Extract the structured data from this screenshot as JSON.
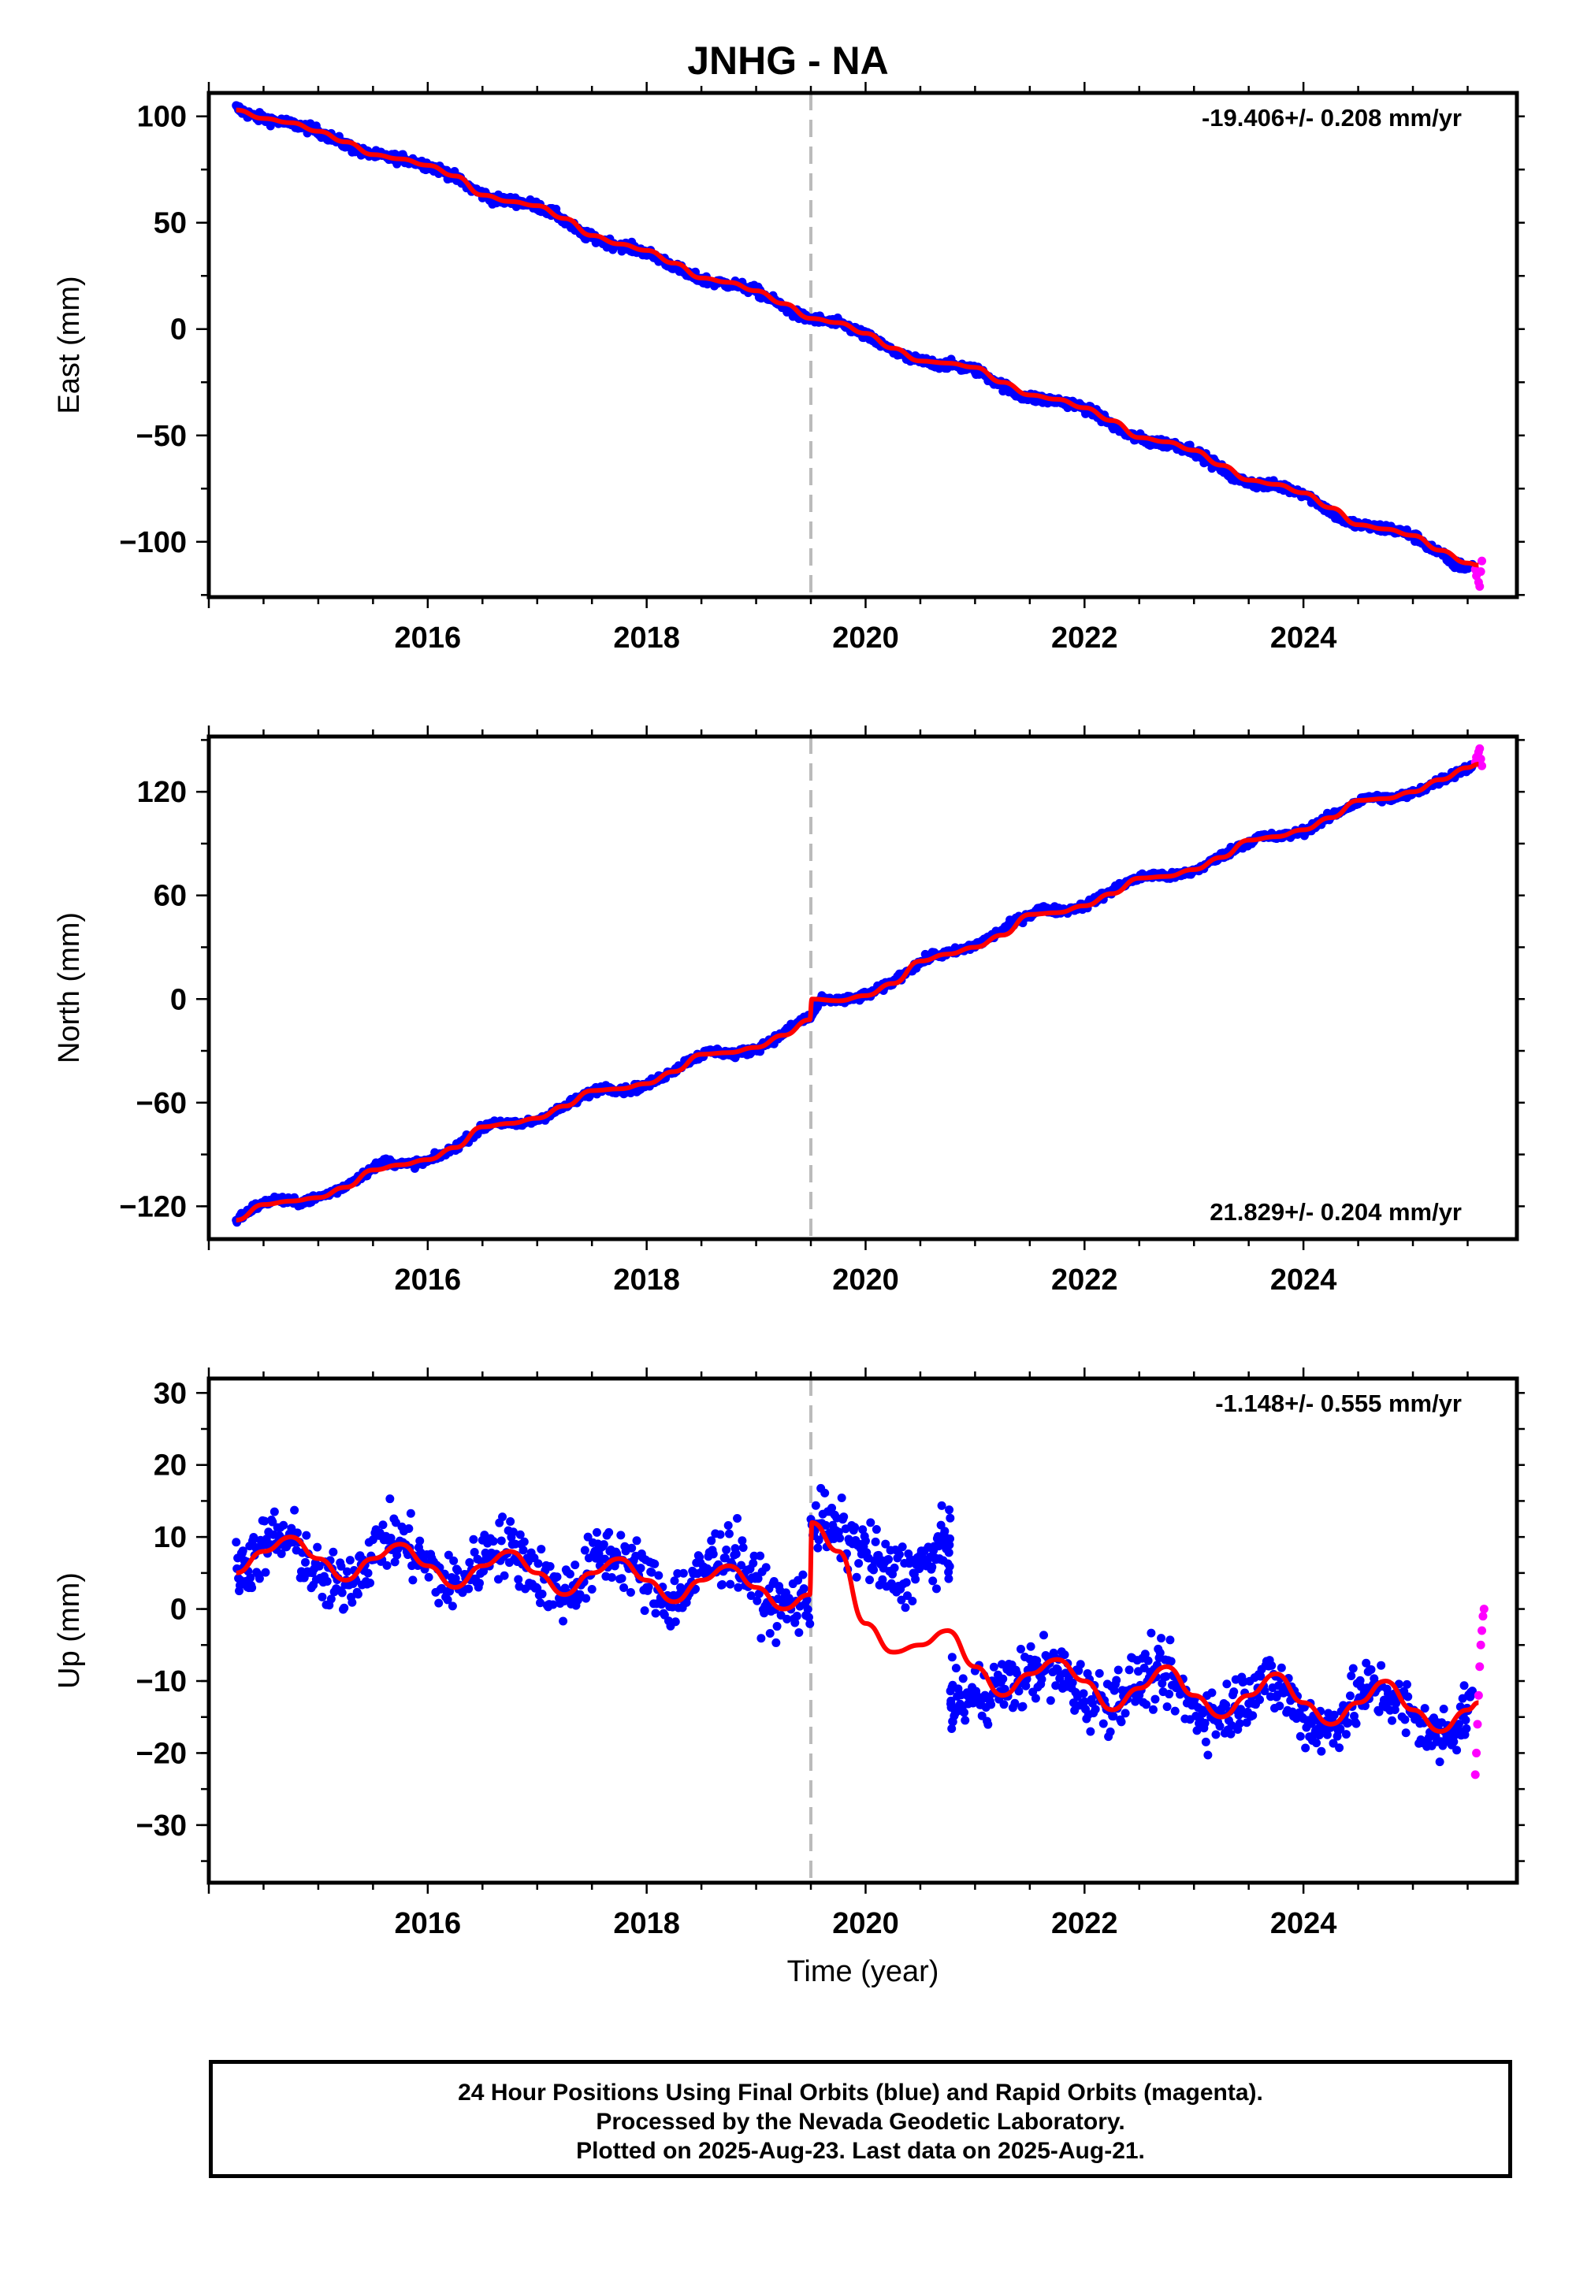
{
  "title": "JNHG - NA",
  "footer": {
    "line1": "24 Hour Positions Using Final Orbits (blue) and Rapid Orbits (magenta).",
    "line2": "Processed by the Nevada Geodetic Laboratory.",
    "line3": "Plotted on 2025-Aug-23. Last data on 2025-Aug-21."
  },
  "colors": {
    "final": "#0000ff",
    "rapid": "#ff00ff",
    "model": "#ff0000",
    "event": "#bbbbbb"
  },
  "chart_data": [
    {
      "type": "scatter",
      "ylabel": "East (mm)",
      "xlabel": "",
      "xlim": [
        2014.0,
        2025.95
      ],
      "ylim": [
        -126,
        111
      ],
      "xticks": [
        2016,
        2018,
        2020,
        2022,
        2024
      ],
      "xtick_labels": [
        "2016",
        "2018",
        "2020",
        "2022",
        "2024"
      ],
      "yticks": [
        -100,
        -50,
        0,
        50,
        100
      ],
      "ytick_labels": [
        "−100",
        "−50",
        "0",
        "50",
        "100"
      ],
      "rate_label": "-19.406+/- 0.208 mm/yr",
      "rate_position": "top-right",
      "event_line_x": 2019.5,
      "series": [
        {
          "role": "final",
          "x": [
            2014.25,
            2014.4,
            2014.6,
            2014.8,
            2015.0,
            2015.2,
            2015.4,
            2015.6,
            2015.8,
            2016.0,
            2016.2,
            2016.4,
            2016.6,
            2016.8,
            2017.0,
            2017.2,
            2017.4,
            2017.6,
            2017.8,
            2018.0,
            2018.2,
            2018.4,
            2018.6,
            2018.8,
            2019.0,
            2019.2,
            2019.4,
            2019.6,
            2019.8,
            2020.0,
            2020.2,
            2020.4,
            2020.6,
            2020.8,
            2021.0,
            2021.2,
            2021.4,
            2021.6,
            2021.8,
            2022.0,
            2022.2,
            2022.4,
            2022.6,
            2022.8,
            2023.0,
            2023.2,
            2023.4,
            2023.6,
            2023.8,
            2024.0,
            2024.2,
            2024.4,
            2024.6,
            2024.8,
            2025.0,
            2025.2,
            2025.4,
            2025.55
          ],
          "y": [
            104,
            100,
            98,
            96,
            93,
            88,
            83,
            81,
            80,
            77,
            73,
            66,
            61,
            60,
            58,
            53,
            45,
            41,
            39,
            36,
            31,
            25,
            22,
            21,
            18,
            12,
            6,
            4,
            2,
            -3,
            -9,
            -14,
            -16,
            -17,
            -19,
            -25,
            -31,
            -33,
            -34,
            -37,
            -43,
            -50,
            -53,
            -54,
            -57,
            -64,
            -71,
            -73,
            -74,
            -77,
            -84,
            -91,
            -93,
            -94,
            -97,
            -104,
            -111,
            -112
          ]
        },
        {
          "role": "rapid",
          "x": [
            2025.57,
            2025.58,
            2025.6,
            2025.61,
            2025.62,
            2025.63
          ],
          "y": [
            -113,
            -116,
            -119,
            -121,
            -114,
            -109
          ]
        },
        {
          "role": "model",
          "x": [
            2014.25,
            2014.5,
            2014.75,
            2015.0,
            2015.25,
            2015.5,
            2015.75,
            2016.0,
            2016.25,
            2016.5,
            2016.75,
            2017.0,
            2017.25,
            2017.5,
            2017.75,
            2018.0,
            2018.25,
            2018.5,
            2018.75,
            2019.0,
            2019.25,
            2019.5,
            2019.75,
            2020.0,
            2020.25,
            2020.5,
            2020.75,
            2021.0,
            2021.25,
            2021.5,
            2021.75,
            2022.0,
            2022.25,
            2022.5,
            2022.75,
            2023.0,
            2023.25,
            2023.5,
            2023.75,
            2024.0,
            2024.25,
            2024.5,
            2024.75,
            2025.0,
            2025.25,
            2025.5,
            2025.6
          ],
          "y": [
            103,
            99,
            97,
            93,
            88,
            82,
            80,
            77,
            72,
            63,
            60,
            58,
            52,
            44,
            40,
            37,
            31,
            24,
            22,
            18,
            12,
            5,
            3,
            -2,
            -9,
            -15,
            -16,
            -18,
            -25,
            -31,
            -33,
            -37,
            -43,
            -51,
            -53,
            -57,
            -64,
            -71,
            -73,
            -77,
            -84,
            -92,
            -94,
            -97,
            -104,
            -110,
            -111
          ]
        }
      ]
    },
    {
      "type": "scatter",
      "ylabel": "North (mm)",
      "xlabel": "",
      "xlim": [
        2014.0,
        2025.95
      ],
      "ylim": [
        -139,
        152
      ],
      "xticks": [
        2016,
        2018,
        2020,
        2022,
        2024
      ],
      "xtick_labels": [
        "2016",
        "2018",
        "2020",
        "2022",
        "2024"
      ],
      "yticks": [
        -120,
        -60,
        0,
        60,
        120
      ],
      "ytick_labels": [
        "−120",
        "−60",
        "0",
        "60",
        "120"
      ],
      "rate_label": "21.829+/- 0.204 mm/yr",
      "rate_position": "bottom-right",
      "event_line_x": 2019.5,
      "series": [
        {
          "role": "final",
          "x": [
            2014.25,
            2014.4,
            2014.6,
            2014.8,
            2015.0,
            2015.2,
            2015.4,
            2015.6,
            2015.8,
            2016.0,
            2016.2,
            2016.4,
            2016.6,
            2016.8,
            2017.0,
            2017.2,
            2017.4,
            2017.6,
            2017.8,
            2018.0,
            2018.2,
            2018.4,
            2018.6,
            2018.8,
            2019.0,
            2019.2,
            2019.4,
            2019.5,
            2019.6,
            2019.8,
            2020.0,
            2020.2,
            2020.4,
            2020.6,
            2020.8,
            2021.0,
            2021.2,
            2021.4,
            2021.6,
            2021.8,
            2022.0,
            2022.2,
            2022.4,
            2022.6,
            2022.8,
            2023.0,
            2023.2,
            2023.4,
            2023.6,
            2023.8,
            2024.0,
            2024.2,
            2024.4,
            2024.6,
            2024.8,
            2025.0,
            2025.2,
            2025.4,
            2025.55
          ],
          "y": [
            -128,
            -121,
            -116,
            -118,
            -115,
            -110,
            -102,
            -94,
            -96,
            -94,
            -88,
            -79,
            -71,
            -73,
            -70,
            -64,
            -57,
            -51,
            -53,
            -50,
            -43,
            -35,
            -30,
            -32,
            -29,
            -22,
            -13,
            -10,
            0,
            -1,
            2,
            8,
            17,
            25,
            27,
            31,
            38,
            46,
            52,
            51,
            54,
            61,
            68,
            72,
            71,
            74,
            81,
            88,
            94,
            94,
            97,
            104,
            111,
            117,
            116,
            119,
            125,
            131,
            135
          ]
        },
        {
          "role": "rapid",
          "x": [
            2025.57,
            2025.58,
            2025.6,
            2025.61,
            2025.62,
            2025.63
          ],
          "y": [
            137,
            140,
            143,
            145,
            139,
            135
          ]
        },
        {
          "role": "model",
          "x": [
            2014.25,
            2014.5,
            2014.75,
            2015.0,
            2015.25,
            2015.5,
            2015.75,
            2016.0,
            2016.25,
            2016.5,
            2016.75,
            2017.0,
            2017.25,
            2017.5,
            2017.75,
            2018.0,
            2018.25,
            2018.5,
            2018.75,
            2019.0,
            2019.25,
            2019.49,
            2019.51,
            2019.75,
            2020.0,
            2020.25,
            2020.5,
            2020.75,
            2021.0,
            2021.25,
            2021.5,
            2021.75,
            2022.0,
            2022.25,
            2022.5,
            2022.75,
            2023.0,
            2023.25,
            2023.5,
            2023.75,
            2024.0,
            2024.25,
            2024.5,
            2024.75,
            2025.0,
            2025.25,
            2025.5,
            2025.6
          ],
          "y": [
            -128,
            -119,
            -117,
            -115,
            -109,
            -99,
            -96,
            -93,
            -86,
            -74,
            -72,
            -69,
            -62,
            -53,
            -52,
            -49,
            -42,
            -32,
            -31,
            -28,
            -21,
            -12,
            0,
            -1,
            2,
            9,
            22,
            26,
            30,
            37,
            49,
            50,
            54,
            61,
            70,
            71,
            75,
            82,
            92,
            94,
            98,
            105,
            115,
            116,
            120,
            127,
            134,
            136
          ]
        }
      ]
    },
    {
      "type": "scatter",
      "ylabel": "Up (mm)",
      "xlabel": "Time (year)",
      "xlim": [
        2014.0,
        2025.95
      ],
      "ylim": [
        -38,
        32
      ],
      "xticks": [
        2016,
        2018,
        2020,
        2022,
        2024
      ],
      "xtick_labels": [
        "2016",
        "2018",
        "2020",
        "2022",
        "2024"
      ],
      "yticks": [
        -30,
        -20,
        -10,
        0,
        10,
        20,
        30
      ],
      "ytick_labels": [
        "−30",
        "−20",
        "−10",
        "0",
        "10",
        "20",
        "30"
      ],
      "rate_label": "-1.148+/- 0.555 mm/yr",
      "rate_position": "top-right",
      "event_line_x": 2019.5,
      "series": [
        {
          "role": "final",
          "x": [
            2014.25,
            2014.4,
            2014.6,
            2014.8,
            2015.0,
            2015.2,
            2015.4,
            2015.6,
            2015.8,
            2016.0,
            2016.2,
            2016.4,
            2016.6,
            2016.8,
            2017.0,
            2017.2,
            2017.4,
            2017.6,
            2017.8,
            2018.0,
            2018.2,
            2018.4,
            2018.6,
            2018.8,
            2019.0,
            2019.2,
            2019.4,
            2019.6,
            2019.8,
            2020.0,
            2020.2,
            2020.4,
            2020.6,
            2020.75,
            2020.8,
            2021.0,
            2021.2,
            2021.4,
            2021.6,
            2021.8,
            2022.0,
            2022.2,
            2022.4,
            2022.6,
            2022.8,
            2023.0,
            2023.2,
            2023.4,
            2023.6,
            2023.8,
            2024.0,
            2024.2,
            2024.4,
            2024.6,
            2024.8,
            2025.0,
            2025.2,
            2025.4,
            2025.55
          ],
          "y": [
            5,
            7,
            10,
            9,
            4,
            3,
            6,
            10,
            9,
            6,
            3,
            5,
            9,
            8,
            5,
            2,
            4,
            8,
            7,
            4,
            1,
            3,
            7,
            8,
            3,
            0,
            1,
            12,
            10,
            8,
            5,
            5,
            7,
            9,
            -13,
            -12,
            -11,
            -10,
            -8,
            -9,
            -12,
            -13,
            -11,
            -9,
            -10,
            -14,
            -15,
            -13,
            -10,
            -11,
            -15,
            -17,
            -14,
            -11,
            -12,
            -15,
            -18,
            -16,
            -13
          ]
        },
        {
          "role": "rapid",
          "x": [
            2025.57,
            2025.58,
            2025.59,
            2025.6,
            2025.61,
            2025.62,
            2025.63,
            2025.64,
            2025.65
          ],
          "y": [
            -23,
            -20,
            -16,
            -12,
            -8,
            -5,
            -3,
            -1,
            0
          ]
        },
        {
          "role": "model",
          "x": [
            2014.25,
            2014.5,
            2014.75,
            2015.0,
            2015.25,
            2015.5,
            2015.75,
            2016.0,
            2016.25,
            2016.5,
            2016.75,
            2017.0,
            2017.25,
            2017.5,
            2017.75,
            2018.0,
            2018.25,
            2018.5,
            2018.75,
            2019.0,
            2019.25,
            2019.49,
            2019.51,
            2019.75,
            2020.0,
            2020.25,
            2020.5,
            2020.75,
            2021.0,
            2021.25,
            2021.5,
            2021.75,
            2022.0,
            2022.25,
            2022.5,
            2022.75,
            2023.0,
            2023.25,
            2023.5,
            2023.75,
            2024.0,
            2024.25,
            2024.5,
            2024.75,
            2025.0,
            2025.25,
            2025.5,
            2025.6
          ],
          "y": [
            5,
            8,
            10,
            7,
            4,
            7,
            9,
            6,
            3,
            6,
            8,
            5,
            2,
            5,
            7,
            4,
            1,
            4,
            6,
            3,
            0,
            2,
            12,
            8,
            -2,
            -6,
            -5,
            -3,
            -8,
            -12,
            -9,
            -7,
            -10,
            -14,
            -11,
            -8,
            -12,
            -15,
            -12,
            -9,
            -13,
            -16,
            -13,
            -10,
            -14,
            -17,
            -14,
            -13
          ]
        }
      ]
    }
  ]
}
